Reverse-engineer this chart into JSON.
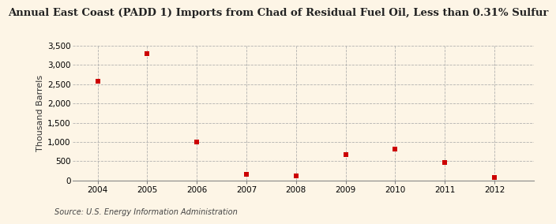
{
  "title": "Annual East Coast (PADD 1) Imports from Chad of Residual Fuel Oil, Less than 0.31% Sulfur",
  "ylabel": "Thousand Barrels",
  "source": "Source: U.S. Energy Information Administration",
  "years": [
    2004,
    2005,
    2006,
    2007,
    2008,
    2009,
    2010,
    2011,
    2012
  ],
  "values": [
    2580,
    3300,
    1000,
    150,
    120,
    670,
    820,
    460,
    70
  ],
  "marker_color": "#cc0000",
  "marker_size": 5,
  "bg_color": "#fdf5e6",
  "grid_color": "#aaaaaa",
  "ylim": [
    0,
    3500
  ],
  "yticks": [
    0,
    500,
    1000,
    1500,
    2000,
    2500,
    3000,
    3500
  ],
  "xlim": [
    2003.5,
    2012.8
  ],
  "xticks": [
    2004,
    2005,
    2006,
    2007,
    2008,
    2009,
    2010,
    2011,
    2012
  ],
  "title_fontsize": 9.5,
  "label_fontsize": 8,
  "tick_fontsize": 7.5,
  "source_fontsize": 7
}
